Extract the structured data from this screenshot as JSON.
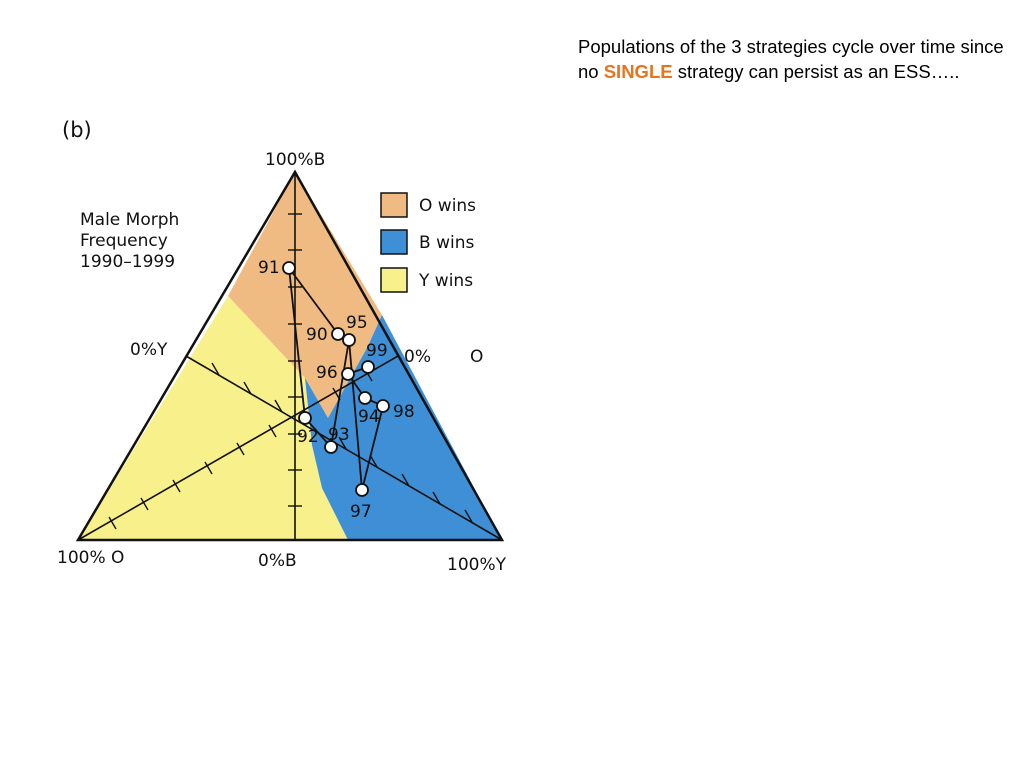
{
  "slide": {
    "text_before": "Populations of the 3 strategies cycle over time since no ",
    "text_highlight": "SINGLE",
    "text_after": " strategy can persist as an ESS…..",
    "highlight_color": "#e8741e"
  },
  "figure": {
    "panel_label": "(b)",
    "title_lines": [
      "Male Morph",
      "Frequency",
      "1990–1999"
    ],
    "vertex_labels": {
      "top": "100%B",
      "bottom_left": "100% O",
      "bottom_right": "100%Y",
      "bottom_mid": "0%B",
      "left_mid": "0%Y",
      "right_mid_pct": "0%",
      "right_mid_letter": "O"
    },
    "legend": [
      {
        "label": "O wins",
        "color": "#efbb82"
      },
      {
        "label": "B wins",
        "color": "#3f8fd6"
      },
      {
        "label": "Y wins",
        "color": "#f8f08a"
      }
    ],
    "years": [
      {
        "label": "91"
      },
      {
        "label": "90"
      },
      {
        "label": "95"
      },
      {
        "label": "99"
      },
      {
        "label": "96"
      },
      {
        "label": "94"
      },
      {
        "label": "98"
      },
      {
        "label": "92"
      },
      {
        "label": "93"
      },
      {
        "label": "97"
      }
    ]
  }
}
